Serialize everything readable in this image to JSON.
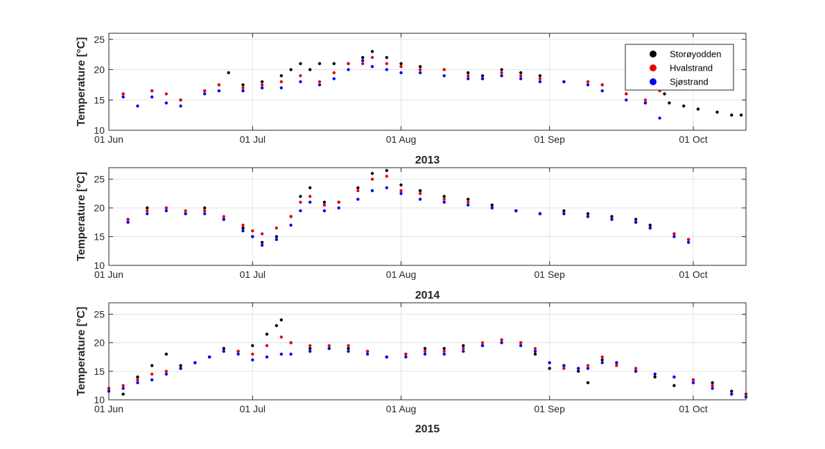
{
  "chart_data": [
    {
      "type": "scatter",
      "title": "",
      "xlabel": "2013",
      "ylabel": "Temperature [°C]",
      "ylim": [
        10,
        26
      ],
      "yticks": [
        10,
        15,
        20,
        25
      ],
      "xlim_days": [
        0,
        133
      ],
      "xticks": [
        {
          "day": 0,
          "label": "01 Jun"
        },
        {
          "day": 30,
          "label": "01 Jul"
        },
        {
          "day": 61,
          "label": "01 Aug"
        },
        {
          "day": 92,
          "label": "01 Sep"
        },
        {
          "day": 122,
          "label": "01 Oct"
        }
      ],
      "grid": true,
      "legend": {
        "placement": "top-right",
        "entries": [
          "Storøyodden",
          "Hvalstrand",
          "Sjøstrand"
        ]
      },
      "series": [
        {
          "name": "Storøyodden",
          "color": "#000000",
          "x_days": [
            3,
            9,
            15,
            20,
            23,
            25,
            28,
            32,
            36,
            38,
            40,
            42,
            44,
            47,
            50,
            53,
            55,
            58,
            61,
            65,
            70,
            75,
            78,
            82,
            86,
            90,
            95,
            100,
            103,
            108,
            112,
            114,
            116,
            117,
            120,
            123,
            127,
            130,
            132
          ],
          "y": [
            16,
            16.5,
            15,
            16.5,
            17.5,
            19.5,
            17.5,
            18,
            19,
            20,
            21,
            20,
            21,
            21,
            21,
            22,
            23,
            22,
            21,
            20.5,
            20,
            19.5,
            19,
            20,
            19.5,
            19,
            18,
            18,
            17.5,
            16,
            14.5,
            17,
            16,
            14.5,
            14,
            13.5,
            13,
            12.5,
            12.5
          ]
        },
        {
          "name": "Hvalstrand",
          "color": "#e8000b",
          "x_days": [
            3,
            9,
            12,
            15,
            20,
            23,
            28,
            32,
            36,
            40,
            44,
            47,
            50,
            53,
            55,
            58,
            61,
            65,
            70,
            75,
            78,
            82,
            86,
            90,
            95,
            100,
            103,
            108,
            112,
            115
          ],
          "y": [
            16,
            16.5,
            16,
            15,
            16.5,
            17.5,
            17,
            17.5,
            18,
            19,
            18,
            19.5,
            21,
            21,
            22,
            21,
            20.5,
            20,
            20,
            19,
            18.5,
            19.5,
            19,
            18.5,
            18,
            18,
            17.5,
            16,
            15,
            16.5
          ]
        },
        {
          "name": "Sjøstrand",
          "color": "#0000ff",
          "x_days": [
            3,
            6,
            9,
            12,
            15,
            20,
            23,
            28,
            32,
            36,
            40,
            44,
            47,
            50,
            53,
            55,
            58,
            61,
            65,
            70,
            75,
            78,
            82,
            86,
            90,
            95,
            100,
            103,
            108,
            112,
            115
          ],
          "y": [
            15.5,
            14,
            15.5,
            14.5,
            14,
            16,
            16.5,
            16.5,
            17,
            17,
            18,
            17.5,
            18.5,
            20,
            21.5,
            20.5,
            20,
            19.5,
            19.5,
            19,
            18.5,
            18.5,
            19,
            18.5,
            18,
            18,
            17.5,
            16.5,
            15,
            14.5,
            12
          ]
        }
      ]
    },
    {
      "type": "scatter",
      "title": "",
      "xlabel": "2014",
      "ylabel": "Temperature [°C]",
      "ylim": [
        10,
        27
      ],
      "yticks": [
        10,
        15,
        20,
        25
      ],
      "xlim_days": [
        0,
        133
      ],
      "xticks": [
        {
          "day": 0,
          "label": "01 Jun"
        },
        {
          "day": 30,
          "label": "01 Jul"
        },
        {
          "day": 61,
          "label": "01 Aug"
        },
        {
          "day": 92,
          "label": "01 Sep"
        },
        {
          "day": 122,
          "label": "01 Oct"
        }
      ],
      "grid": true,
      "series": [
        {
          "name": "Storøyodden",
          "color": "#000000",
          "x_days": [
            4,
            8,
            12,
            16,
            20,
            24,
            28,
            30,
            32,
            35,
            38,
            40,
            42,
            45,
            48,
            52,
            55,
            58,
            61,
            65,
            70,
            75,
            80,
            85,
            90,
            95,
            100,
            105,
            110,
            113,
            118,
            121
          ],
          "y": [
            18,
            20,
            20,
            19,
            20,
            18,
            16.5,
            15,
            14,
            15,
            18.5,
            22,
            23.5,
            21,
            21,
            23.5,
            26,
            26.5,
            24,
            23,
            22,
            21.5,
            20.5,
            19.5,
            19,
            19.5,
            19,
            18.5,
            18,
            17,
            15.5,
            14.5
          ]
        },
        {
          "name": "Hvalstrand",
          "color": "#e8000b",
          "x_days": [
            4,
            8,
            12,
            16,
            20,
            24,
            28,
            30,
            32,
            35,
            38,
            40,
            42,
            45,
            48,
            52,
            55,
            58,
            61,
            65,
            70,
            75,
            80,
            85,
            90,
            95,
            100,
            105,
            110,
            113,
            118,
            121
          ],
          "y": [
            18,
            19.5,
            20,
            19.5,
            19.5,
            18.5,
            17,
            16,
            15.5,
            16.5,
            18.5,
            21,
            22,
            20.5,
            21,
            23,
            25,
            25.5,
            23,
            22.5,
            21.5,
            21,
            20,
            19.5,
            19,
            19,
            18.5,
            18,
            17.5,
            16.5,
            15.5,
            14.5
          ]
        },
        {
          "name": "Sjøstrand",
          "color": "#0000ff",
          "x_days": [
            4,
            8,
            12,
            16,
            20,
            24,
            28,
            30,
            32,
            35,
            38,
            40,
            42,
            45,
            48,
            52,
            55,
            58,
            61,
            65,
            70,
            75,
            80,
            85,
            90,
            95,
            100,
            105,
            110,
            113,
            118,
            121
          ],
          "y": [
            17.5,
            19,
            19.5,
            19,
            19,
            18,
            16,
            15,
            13.5,
            14.5,
            17,
            19.5,
            21,
            19.5,
            20,
            21.5,
            23,
            23.5,
            22.5,
            21.5,
            21,
            20.5,
            20,
            19.5,
            19,
            19,
            18.5,
            18,
            17.5,
            16.5,
            15,
            14
          ]
        }
      ]
    },
    {
      "type": "scatter",
      "title": "",
      "xlabel": "2015",
      "ylabel": "Temperature [°C]",
      "ylim": [
        10,
        27
      ],
      "yticks": [
        10,
        15,
        20,
        25
      ],
      "xlim_days": [
        0,
        133
      ],
      "xticks": [
        {
          "day": 0,
          "label": "01 Jun"
        },
        {
          "day": 30,
          "label": "01 Jul"
        },
        {
          "day": 61,
          "label": "01 Aug"
        },
        {
          "day": 92,
          "label": "01 Sep"
        },
        {
          "day": 122,
          "label": "01 Oct"
        }
      ],
      "grid": true,
      "series": [
        {
          "name": "Storøyodden",
          "color": "#000000",
          "x_days": [
            0,
            3,
            6,
            9,
            12,
            15,
            18,
            21,
            24,
            27,
            30,
            33,
            35,
            36,
            38,
            42,
            46,
            50,
            54,
            58,
            62,
            66,
            70,
            74,
            78,
            82,
            86,
            89,
            92,
            95,
            98,
            100,
            103,
            106,
            110,
            114,
            118,
            122,
            126,
            130,
            133
          ],
          "y": [
            12,
            11,
            14,
            16,
            18,
            16,
            16.5,
            17.5,
            19,
            18.5,
            19.5,
            21.5,
            23,
            24,
            20,
            19,
            19,
            19,
            18.5,
            17.5,
            18,
            19,
            19,
            19.5,
            19.5,
            20.5,
            20,
            18,
            15.5,
            16,
            15,
            13,
            17,
            16.5,
            15,
            14,
            12.5,
            13.5,
            13,
            11.5,
            11
          ]
        },
        {
          "name": "Hvalstrand",
          "color": "#e8000b",
          "x_days": [
            0,
            3,
            6,
            9,
            12,
            15,
            18,
            21,
            24,
            27,
            30,
            33,
            36,
            38,
            42,
            46,
            50,
            54,
            58,
            62,
            66,
            70,
            74,
            78,
            82,
            86,
            89,
            92,
            95,
            98,
            100,
            103,
            106,
            110,
            114,
            118,
            122,
            126,
            130,
            133
          ],
          "y": [
            12,
            12.5,
            13.5,
            14.5,
            15,
            15.5,
            16.5,
            17.5,
            18.5,
            18.5,
            18,
            19.5,
            21,
            20,
            19.5,
            19.5,
            19.5,
            18.5,
            17.5,
            18,
            18.5,
            18.5,
            19,
            20,
            20.5,
            20,
            19,
            16.5,
            15.5,
            15.5,
            16,
            17.5,
            16,
            15.5,
            14.5,
            14,
            13.5,
            12.5,
            11,
            11
          ]
        },
        {
          "name": "Sjøstrand",
          "color": "#0000ff",
          "x_days": [
            0,
            3,
            6,
            9,
            12,
            15,
            18,
            21,
            24,
            27,
            30,
            33,
            36,
            38,
            42,
            46,
            50,
            54,
            58,
            62,
            66,
            70,
            74,
            78,
            82,
            86,
            89,
            92,
            95,
            98,
            100,
            103,
            106,
            110,
            114,
            118,
            122,
            126,
            130,
            133
          ],
          "y": [
            11.5,
            12,
            13,
            13.5,
            14.5,
            15.5,
            16.5,
            17.5,
            18.5,
            18,
            17,
            17.5,
            18,
            18,
            18.5,
            19,
            18.5,
            18,
            17.5,
            17.5,
            18,
            18,
            18.5,
            19.5,
            20,
            19.5,
            18.5,
            16.5,
            16,
            15.5,
            15.5,
            16.5,
            16.5,
            15,
            14.5,
            14,
            13,
            12,
            11,
            10.5
          ]
        }
      ]
    }
  ]
}
